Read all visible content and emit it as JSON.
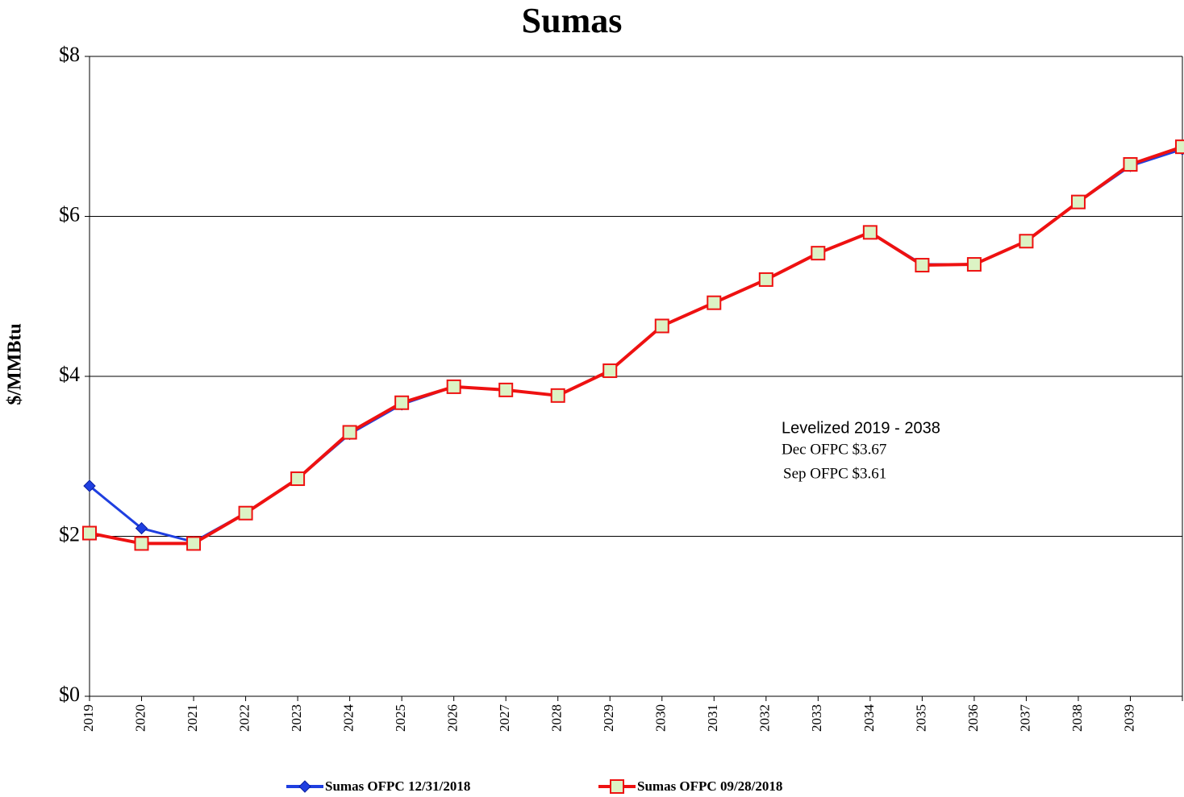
{
  "chart_data": {
    "type": "line",
    "title": "Sumas",
    "y_label": "$/MMBtu",
    "categories": [
      "2019",
      "2020",
      "2021",
      "2022",
      "2023",
      "2024",
      "2025",
      "2026",
      "2027",
      "2028",
      "2029",
      "2030",
      "2031",
      "2032",
      "2033",
      "2034",
      "2035",
      "2036",
      "2037",
      "2038",
      "2039",
      null
    ],
    "series": [
      {
        "name": "Sumas OFPC 12/31/2018",
        "color": "#1f3fe0",
        "marker": "diamond",
        "values": [
          2.63,
          2.1,
          1.93,
          2.29,
          2.72,
          3.28,
          3.65,
          3.87,
          3.83,
          3.76,
          4.07,
          4.63,
          4.92,
          5.21,
          5.54,
          5.8,
          5.4,
          5.4,
          5.69,
          6.18,
          6.63,
          6.84
        ]
      },
      {
        "name": "Sumas OFPC 09/28/2018",
        "color": "#ee1111",
        "marker": "square",
        "values": [
          2.04,
          1.91,
          1.91,
          2.29,
          2.72,
          3.3,
          3.67,
          3.87,
          3.83,
          3.76,
          4.07,
          4.63,
          4.92,
          5.21,
          5.54,
          5.8,
          5.39,
          5.4,
          5.69,
          6.18,
          6.65,
          6.87
        ]
      }
    ],
    "ylim": [
      0,
      8
    ],
    "yticks": [
      {
        "value": 0,
        "label": "$0"
      },
      {
        "value": 2,
        "label": "$2"
      },
      {
        "value": 4,
        "label": "$4"
      },
      {
        "value": 6,
        "label": "$6"
      },
      {
        "value": 8,
        "label": "$8"
      }
    ],
    "grid": true,
    "annotations": [
      "Levelized 2019 - 2038",
      "Dec OFPC $3.67",
      "Sep OFPC $3.61"
    ],
    "legend": "bottom"
  }
}
